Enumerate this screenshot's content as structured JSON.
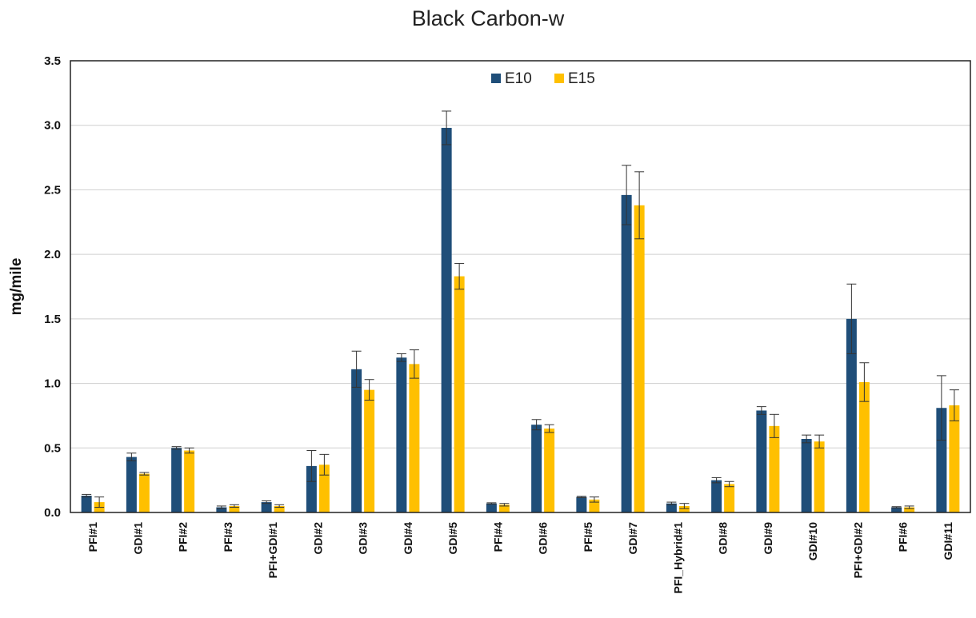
{
  "chart_data": {
    "type": "bar",
    "title": "Black Carbon-w",
    "xlabel": "",
    "ylabel": "mg/mile",
    "ylim": [
      0,
      3.5
    ],
    "yticks": [
      "0.0",
      "0.5",
      "1.0",
      "1.5",
      "2.0",
      "2.5",
      "3.0",
      "3.5"
    ],
    "grid": true,
    "legend_position": "top-center",
    "categories": [
      "PFI#1",
      "GDI#1",
      "PFI#2",
      "PFI#3",
      "PFI+GDI#1",
      "GDI#2",
      "GDI#3",
      "GDI#4",
      "GDI#5",
      "PFI#4",
      "GDI#6",
      "PFI#5",
      "GDI#7",
      "PFI_Hybrid#1",
      "GDI#8",
      "GDI#9",
      "GDI#10",
      "PFI+GDI#2",
      "PFI#6",
      "GDI#11"
    ],
    "series": [
      {
        "name": "E10",
        "color": "#1f4e79",
        "values": [
          0.13,
          0.43,
          0.5,
          0.04,
          0.08,
          0.36,
          1.11,
          1.2,
          2.98,
          0.07,
          0.68,
          0.12,
          2.46,
          0.07,
          0.25,
          0.79,
          0.57,
          1.5,
          0.04,
          0.81
        ],
        "errors": [
          0.01,
          0.03,
          0.01,
          0.01,
          0.01,
          0.12,
          0.14,
          0.03,
          0.13,
          0.005,
          0.04,
          0.005,
          0.23,
          0.01,
          0.02,
          0.03,
          0.03,
          0.27,
          0.005,
          0.25
        ]
      },
      {
        "name": "E15",
        "color": "#ffc000",
        "values": [
          0.08,
          0.3,
          0.48,
          0.05,
          0.05,
          0.37,
          0.95,
          1.15,
          1.83,
          0.06,
          0.65,
          0.1,
          2.38,
          0.05,
          0.22,
          0.67,
          0.55,
          1.01,
          0.04,
          0.83
        ],
        "errors": [
          0.04,
          0.01,
          0.02,
          0.01,
          0.01,
          0.08,
          0.08,
          0.11,
          0.1,
          0.01,
          0.03,
          0.02,
          0.26,
          0.02,
          0.02,
          0.09,
          0.05,
          0.15,
          0.01,
          0.12
        ]
      }
    ]
  }
}
